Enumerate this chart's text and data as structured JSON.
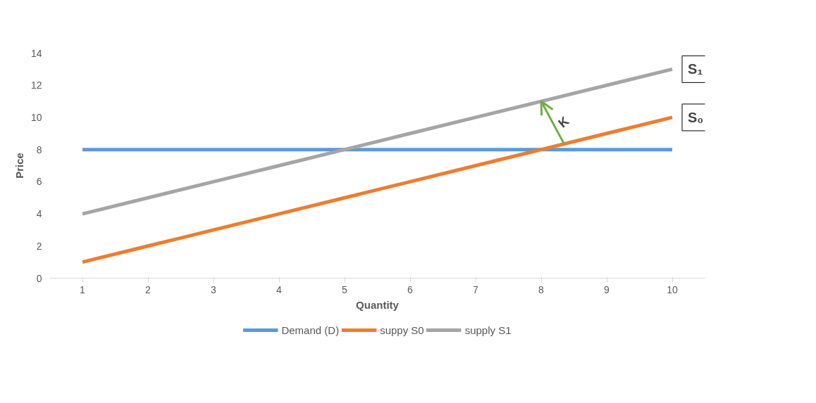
{
  "chart_data": {
    "type": "line",
    "xlabel": "Quantity",
    "ylabel": "Price",
    "categories": [
      "1",
      "2",
      "3",
      "4",
      "5",
      "6",
      "7",
      "8",
      "9",
      "10"
    ],
    "series": [
      {
        "name": "Demand (D)",
        "color": "#5b9bd5",
        "values": [
          8,
          8,
          8,
          8,
          8,
          8,
          8,
          8,
          8,
          8
        ]
      },
      {
        "name": "suppy S0",
        "color": "#ed7d31",
        "values": [
          1,
          2,
          3,
          4,
          5,
          6,
          7,
          8,
          9,
          10
        ]
      },
      {
        "name": "supply S1",
        "color": "#a5a5a5",
        "values": [
          4,
          5,
          6,
          7,
          8,
          9,
          10,
          11,
          12,
          13
        ]
      }
    ],
    "ylim": [
      0,
      14
    ],
    "yticks": [
      0,
      2,
      4,
      6,
      8,
      10,
      12,
      14
    ],
    "grid": false,
    "legend": "bottom",
    "marker": "none",
    "line_style": "solid",
    "annotations": [
      {
        "text": "S₁",
        "x": "10",
        "y": 13
      },
      {
        "text": "S₀",
        "x": "10",
        "y": 10
      },
      {
        "text": "K",
        "x": "8",
        "y": 11
      }
    ]
  }
}
